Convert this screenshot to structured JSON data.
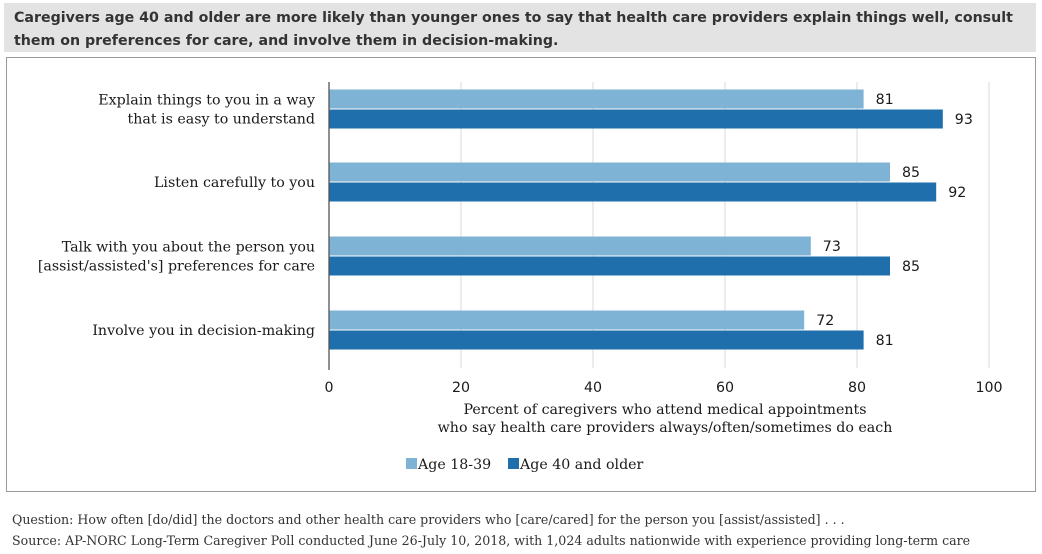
{
  "title": "Caregivers age 40 and older are more likely than younger ones to say that health care providers explain things well, consult them on preferences for care, and involve them in decision-making.",
  "footer": {
    "question": "Question: How often [do/did] the doctors and other health care providers who [care/cared] for the person you [assist/assisted] . . .",
    "source": "Source: AP-NORC Long-Term Caregiver Poll conducted June 26-July 10, 2018, with 1,024 adults nationwide with experience providing long-term care"
  },
  "chart_data": {
    "type": "bar",
    "orientation": "horizontal",
    "categories": [
      [
        "Explain things to you in a way",
        "that is easy to understand"
      ],
      [
        "Listen carefully to you"
      ],
      [
        "Talk with you about the person you",
        "[assist/assisted's] preferences for care"
      ],
      [
        "Involve you in decision-making"
      ]
    ],
    "series": [
      {
        "name": "Age 18-39",
        "values": [
          81,
          85,
          73,
          72
        ],
        "color": "#7fb3d5"
      },
      {
        "name": "Age 40 and older",
        "values": [
          93,
          92,
          85,
          81
        ],
        "color": "#1f6fad"
      }
    ],
    "xlabel": [
      "Percent of caregivers who attend medical appointments",
      "who say health care providers always/often/sometimes do each"
    ],
    "xlim": [
      0,
      100
    ],
    "xticks": [
      0,
      20,
      40,
      60,
      80,
      100
    ],
    "grid": true,
    "legend_position": "bottom"
  }
}
